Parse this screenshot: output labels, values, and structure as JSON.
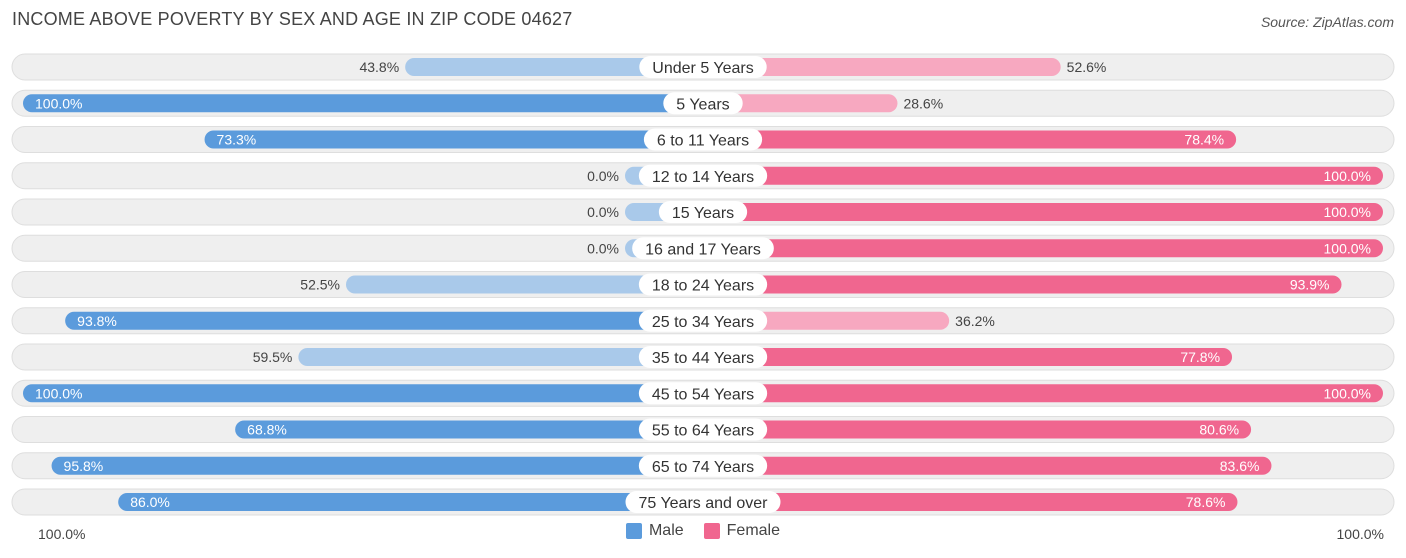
{
  "header": {
    "title": "INCOME ABOVE POVERTY BY SEX AND AGE IN ZIP CODE 04627",
    "source": "Source: ZipAtlas.com"
  },
  "colors": {
    "male_strong": "#5b9bdc",
    "male_light": "#a9c9ea",
    "female_strong": "#f0668f",
    "female_light": "#f7a8c0",
    "row_bg": "#efefef",
    "row_border": "#dedede"
  },
  "legend": {
    "male_label": "Male",
    "female_label": "Female"
  },
  "axis": {
    "left_label": "100.0%",
    "right_label": "100.0%"
  },
  "chart_data": {
    "type": "bar",
    "orientation": "horizontal-diverging",
    "title": "INCOME ABOVE POVERTY BY SEX AND AGE IN ZIP CODE 04627",
    "categories": [
      "Under 5 Years",
      "5 Years",
      "6 to 11 Years",
      "12 to 14 Years",
      "15 Years",
      "16 and 17 Years",
      "18 to 24 Years",
      "25 to 34 Years",
      "35 to 44 Years",
      "45 to 54 Years",
      "55 to 64 Years",
      "65 to 74 Years",
      "75 Years and over"
    ],
    "series": [
      {
        "name": "Male",
        "values": [
          43.8,
          100.0,
          73.3,
          0.0,
          0.0,
          0.0,
          52.5,
          93.8,
          59.5,
          100.0,
          68.8,
          95.8,
          86.0
        ],
        "labels": [
          "43.8%",
          "100.0%",
          "73.3%",
          "0.0%",
          "0.0%",
          "0.0%",
          "52.5%",
          "93.8%",
          "59.5%",
          "100.0%",
          "68.8%",
          "95.8%",
          "86.0%"
        ]
      },
      {
        "name": "Female",
        "values": [
          52.6,
          28.6,
          78.4,
          100.0,
          100.0,
          100.0,
          93.9,
          36.2,
          77.8,
          100.0,
          80.6,
          83.6,
          78.6
        ],
        "labels": [
          "52.6%",
          "28.6%",
          "78.4%",
          "100.0%",
          "100.0%",
          "100.0%",
          "93.9%",
          "36.2%",
          "77.8%",
          "100.0%",
          "80.6%",
          "83.6%",
          "78.6%"
        ]
      }
    ],
    "xlim": [
      -100,
      100
    ],
    "legend_position": "bottom-center"
  }
}
